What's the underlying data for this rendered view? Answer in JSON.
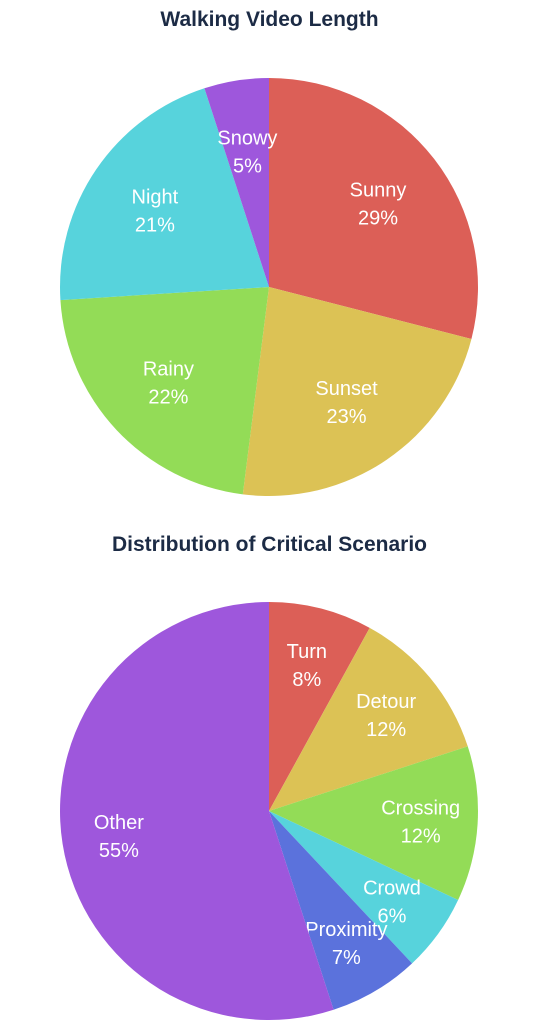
{
  "chart_data": [
    {
      "type": "pie",
      "title": "Walking Video Length",
      "slices": [
        {
          "label": "Sunny",
          "pct_label": "29%",
          "value": 29,
          "color": "#dc5f57"
        },
        {
          "label": "Sunset",
          "pct_label": "23%",
          "value": 23,
          "color": "#dcc255"
        },
        {
          "label": "Rainy",
          "pct_label": "22%",
          "value": 22,
          "color": "#93dc57"
        },
        {
          "label": "Night",
          "pct_label": "21%",
          "value": 21,
          "color": "#57d3dc"
        },
        {
          "label": "Snowy",
          "pct_label": "5%",
          "value": 5,
          "color": "#9e57dc"
        }
      ]
    },
    {
      "type": "pie",
      "title": "Distribution of Critical Scenario",
      "slices": [
        {
          "label": "Turn",
          "pct_label": "8%",
          "value": 8,
          "color": "#dc5f57"
        },
        {
          "label": "Detour",
          "pct_label": "12%",
          "value": 12,
          "color": "#dcc255"
        },
        {
          "label": "Crossing",
          "pct_label": "12%",
          "value": 12,
          "color": "#93dc57"
        },
        {
          "label": "Crowd",
          "pct_label": "6%",
          "value": 6,
          "color": "#57d3dc"
        },
        {
          "label": "Proximity",
          "pct_label": "7%",
          "value": 7,
          "color": "#5b72dc"
        },
        {
          "label": "Other",
          "pct_label": "55%",
          "value": 55,
          "color": "#9e57dc"
        }
      ]
    }
  ]
}
